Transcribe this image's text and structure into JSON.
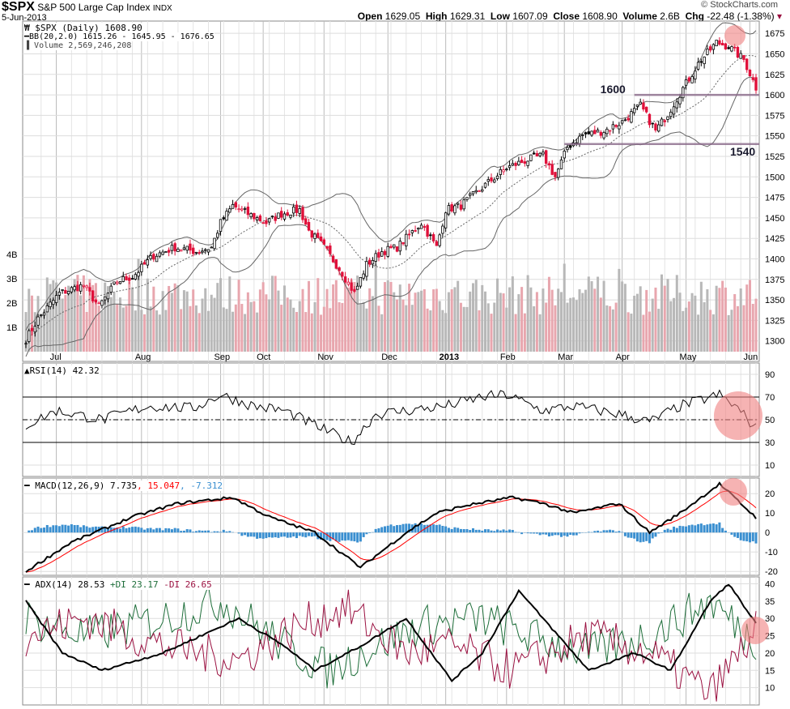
{
  "header": {
    "symbol": "$SPX",
    "name": "S&P 500 Large Cap Index",
    "exchange": "INDX",
    "date": "5-Jun-2013",
    "open_label": "Open",
    "open": "1629.05",
    "high_label": "High",
    "high": "1629.31",
    "low_label": "Low",
    "low": "1607.09",
    "close_label": "Close",
    "close": "1608.90",
    "volume_label": "Volume",
    "volume": "2.6B",
    "chg_label": "Chg",
    "chg": "-22.48 (-1.38%)",
    "copyright": "© StockCharts.com"
  },
  "legend": {
    "price": "$SPX (Daily) 1608.90",
    "bb": "BB(20,2.0) 1615.26 - 1645.95 - 1676.65",
    "volume": "Volume 2,569,246,208",
    "rsi": "RSI(14) 42.32",
    "macd_name": "MACD(12,26,9) 7.735",
    "macd_signal": ", 15.047",
    "macd_hist": ", -7.312",
    "adx_name": "ADX(14) 28.53",
    "adx_pdi": "+DI 23.17",
    "adx_mdi": "-DI 26.65"
  },
  "colors": {
    "up": "#000000",
    "down": "#e0103a",
    "volume_up": "#b8b8b8",
    "volume_down": "#e8a6ae",
    "signal": "#ff0000",
    "histogram": "#3a8fd0",
    "pdi": "#1e6e3a",
    "mdi": "#9a1040",
    "highlight": "#f08080",
    "support": "#8a6a8a"
  },
  "chart_data": {
    "type": "candlestick",
    "trading_days": 241,
    "months": [
      {
        "label": "Jul",
        "day": 10
      },
      {
        "label": "Aug",
        "day": 38
      },
      {
        "label": "Sep",
        "day": 64
      },
      {
        "label": "Oct",
        "day": 78
      },
      {
        "label": "Nov",
        "day": 98
      },
      {
        "label": "Dec",
        "day": 119
      },
      {
        "label": "2013",
        "day": 138
      },
      {
        "label": "Feb",
        "day": 158
      },
      {
        "label": "Mar",
        "day": 177
      },
      {
        "label": "Apr",
        "day": 196
      },
      {
        "label": "May",
        "day": 217
      },
      {
        "label": "Jun",
        "day": 238
      }
    ],
    "price": {
      "ylim": [
        1275,
        1690
      ],
      "ticks": [
        1300,
        1325,
        1350,
        1375,
        1400,
        1425,
        1450,
        1475,
        1500,
        1525,
        1550,
        1575,
        1600,
        1625,
        1650,
        1675
      ],
      "close_anchors": [
        [
          0,
          1302
        ],
        [
          4,
          1327
        ],
        [
          11,
          1358
        ],
        [
          19,
          1368
        ],
        [
          24,
          1342
        ],
        [
          30,
          1373
        ],
        [
          35,
          1378
        ],
        [
          42,
          1404
        ],
        [
          49,
          1414
        ],
        [
          56,
          1409
        ],
        [
          61,
          1414
        ],
        [
          64,
          1444
        ],
        [
          68,
          1465
        ],
        [
          73,
          1455
        ],
        [
          79,
          1444
        ],
        [
          84,
          1455
        ],
        [
          90,
          1460
        ],
        [
          93,
          1434
        ],
        [
          98,
          1414
        ],
        [
          104,
          1383
        ],
        [
          108,
          1358
        ],
        [
          112,
          1393
        ],
        [
          117,
          1409
        ],
        [
          122,
          1414
        ],
        [
          130,
          1444
        ],
        [
          135,
          1414
        ],
        [
          138,
          1460
        ],
        [
          143,
          1465
        ],
        [
          151,
          1490
        ],
        [
          158,
          1511
        ],
        [
          165,
          1521
        ],
        [
          170,
          1526
        ],
        [
          174,
          1500
        ],
        [
          178,
          1536
        ],
        [
          183,
          1551
        ],
        [
          190,
          1556
        ],
        [
          196,
          1567
        ],
        [
          202,
          1587
        ],
        [
          207,
          1556
        ],
        [
          211,
          1577
        ],
        [
          216,
          1608
        ],
        [
          221,
          1638
        ],
        [
          227,
          1664
        ],
        [
          231,
          1659
        ],
        [
          236,
          1643
        ],
        [
          240,
          1609
        ]
      ]
    },
    "volume": {
      "ticks": [
        {
          "v": 1,
          "label": "1B"
        },
        {
          "v": 2,
          "label": "2B"
        },
        {
          "v": 3,
          "label": "3B"
        },
        {
          "v": 4,
          "label": "4B"
        }
      ],
      "range_billions": [
        1.5,
        3.6
      ]
    },
    "annotations": [
      {
        "label": "1600",
        "level": 1600,
        "from_day": 200
      },
      {
        "label": "1540",
        "level": 1540,
        "from_day": 177
      }
    ],
    "rsi": {
      "ylim": [
        0,
        100
      ],
      "ticks": [
        10,
        30,
        50,
        70,
        90
      ],
      "levels": [
        30,
        50,
        70
      ],
      "anchors": [
        [
          0,
          45
        ],
        [
          10,
          58
        ],
        [
          25,
          50
        ],
        [
          40,
          62
        ],
        [
          55,
          60
        ],
        [
          64,
          72
        ],
        [
          75,
          62
        ],
        [
          85,
          58
        ],
        [
          95,
          45
        ],
        [
          107,
          30
        ],
        [
          115,
          55
        ],
        [
          125,
          58
        ],
        [
          138,
          62
        ],
        [
          150,
          70
        ],
        [
          158,
          72
        ],
        [
          170,
          58
        ],
        [
          180,
          62
        ],
        [
          195,
          55
        ],
        [
          205,
          48
        ],
        [
          215,
          62
        ],
        [
          228,
          72
        ],
        [
          234,
          60
        ],
        [
          240,
          42
        ]
      ]
    },
    "macd": {
      "ylim": [
        -22,
        28
      ],
      "ticks": [
        20,
        10,
        0,
        -10,
        -20
      ],
      "anchors": [
        [
          0,
          -20
        ],
        [
          15,
          -5
        ],
        [
          35,
          8
        ],
        [
          50,
          15
        ],
        [
          68,
          18
        ],
        [
          80,
          8
        ],
        [
          95,
          0
        ],
        [
          110,
          -18
        ],
        [
          125,
          0
        ],
        [
          135,
          10
        ],
        [
          145,
          14
        ],
        [
          160,
          18
        ],
        [
          170,
          15
        ],
        [
          180,
          10
        ],
        [
          195,
          15
        ],
        [
          205,
          0
        ],
        [
          215,
          10
        ],
        [
          228,
          25
        ],
        [
          240,
          7.7
        ]
      ]
    },
    "adx": {
      "ylim": [
        5,
        42
      ],
      "ticks": [
        10,
        15,
        20,
        25,
        30,
        35,
        40
      ],
      "adx_anchors": [
        [
          0,
          35
        ],
        [
          12,
          20
        ],
        [
          25,
          15
        ],
        [
          45,
          20
        ],
        [
          70,
          30
        ],
        [
          85,
          22
        ],
        [
          95,
          15
        ],
        [
          110,
          22
        ],
        [
          125,
          30
        ],
        [
          140,
          12
        ],
        [
          150,
          20
        ],
        [
          162,
          38
        ],
        [
          175,
          25
        ],
        [
          185,
          15
        ],
        [
          200,
          20
        ],
        [
          212,
          15
        ],
        [
          225,
          35
        ],
        [
          231,
          40
        ],
        [
          240,
          28.5
        ]
      ],
      "pdi_anchors": [
        [
          0,
          30
        ],
        [
          20,
          25
        ],
        [
          45,
          30
        ],
        [
          65,
          35
        ],
        [
          85,
          22
        ],
        [
          100,
          15
        ],
        [
          110,
          20
        ],
        [
          130,
          28
        ],
        [
          150,
          30
        ],
        [
          165,
          25
        ],
        [
          185,
          20
        ],
        [
          205,
          25
        ],
        [
          225,
          35
        ],
        [
          240,
          23
        ]
      ],
      "mdi_anchors": [
        [
          0,
          25
        ],
        [
          20,
          30
        ],
        [
          45,
          22
        ],
        [
          70,
          18
        ],
        [
          90,
          28
        ],
        [
          105,
          33
        ],
        [
          125,
          20
        ],
        [
          140,
          22
        ],
        [
          160,
          15
        ],
        [
          185,
          25
        ],
        [
          205,
          20
        ],
        [
          225,
          8
        ],
        [
          240,
          26.6
        ]
      ]
    }
  }
}
